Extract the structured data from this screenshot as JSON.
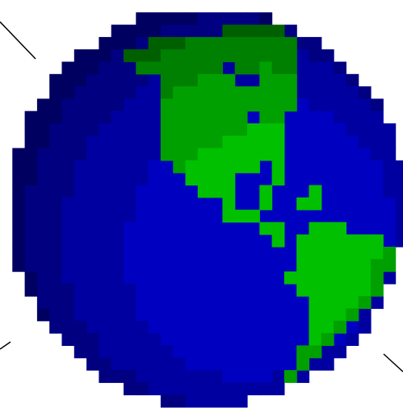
{
  "image": {
    "subject": "globe-icon",
    "background_color": "#ffffff",
    "ocean_colors": [
      "#000060",
      "#000080",
      "#0000a0",
      "#0000c0",
      "#0000d8"
    ],
    "land_colors": [
      "#004000",
      "#006000",
      "#008000",
      "#00a000",
      "#00c000",
      "#00d800"
    ],
    "shine_line_color": "#000000"
  }
}
